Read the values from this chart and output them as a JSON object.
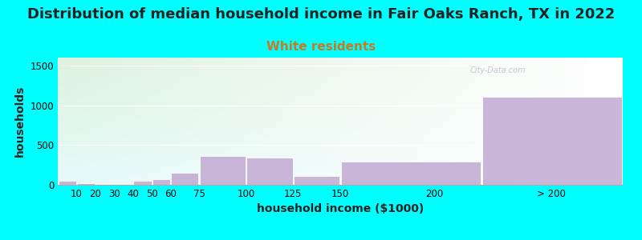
{
  "title": "Distribution of median household income in Fair Oaks Ranch, TX in 2022",
  "subtitle": "White residents",
  "xlabel": "household income ($1000)",
  "ylabel": "households",
  "background_color": "#00FFFF",
  "bar_color": "#C4AED4",
  "bar_edge_color": "#FFFFFF",
  "categories": [
    "10",
    "20",
    "30",
    "40",
    "50",
    "60",
    "75",
    "100",
    "125",
    "150",
    "200",
    "> 200"
  ],
  "left_edges": [
    0,
    10,
    20,
    30,
    40,
    50,
    60,
    75,
    100,
    125,
    150,
    225
  ],
  "bar_widths": [
    10,
    10,
    10,
    10,
    10,
    10,
    15,
    25,
    25,
    25,
    75,
    75
  ],
  "values": [
    50,
    18,
    8,
    14,
    52,
    70,
    155,
    360,
    340,
    110,
    295,
    1110
  ],
  "xtick_positions": [
    10,
    20,
    30,
    40,
    50,
    60,
    75,
    100,
    125,
    150,
    200,
    262
  ],
  "xtick_labels": [
    "10",
    "20",
    "30",
    "40",
    "50",
    "60",
    "75",
    "100",
    "125",
    "150",
    "200",
    "> 200"
  ],
  "xlim": [
    0,
    300
  ],
  "ylim": [
    0,
    1600
  ],
  "yticks": [
    0,
    500,
    1000,
    1500
  ],
  "title_fontsize": 13,
  "subtitle_fontsize": 11,
  "title_color": "#222222",
  "subtitle_color": "#CC7722",
  "axis_label_fontsize": 10,
  "tick_fontsize": 8.5,
  "watermark_text": "City-Data.com",
  "watermark_color": "#BBBBCC"
}
